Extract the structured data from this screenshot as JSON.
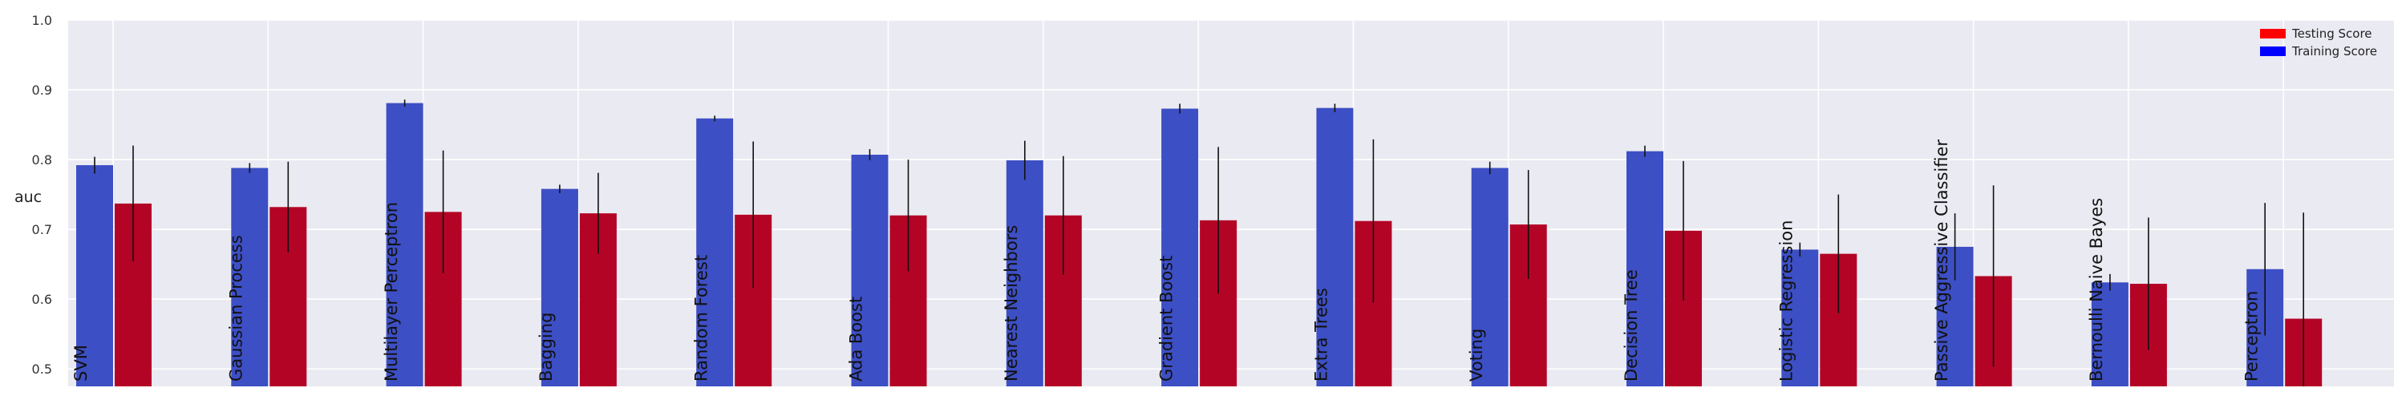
{
  "chart_data": {
    "type": "bar",
    "ylabel": "auc",
    "ylim": [
      0.475,
      1.0
    ],
    "yticks": [
      0.5,
      0.6,
      0.7,
      0.8,
      0.9,
      1.0
    ],
    "grid": true,
    "legend_position": "top-right",
    "categories": [
      "SVM",
      "Gaussian Process",
      "Multilayer Perceptron",
      "Bagging",
      "Random Forest",
      "Ada Boost",
      "Nearest Neighbors",
      "Gradient Boost",
      "Extra Trees",
      "Voting",
      "Decision Tree",
      "Logistic Regression",
      "Passive Aggressive Classifier",
      "Bernoulli Naive Bayes",
      "Perceptron"
    ],
    "series": [
      {
        "name": "Training Score",
        "color": "#3d4fc4",
        "values": [
          0.792,
          0.788,
          0.881,
          0.758,
          0.859,
          0.807,
          0.799,
          0.873,
          0.874,
          0.788,
          0.812,
          0.671,
          0.675,
          0.624,
          0.643
        ],
        "errors": [
          0.012,
          0.007,
          0.005,
          0.006,
          0.004,
          0.008,
          0.028,
          0.007,
          0.006,
          0.009,
          0.008,
          0.01,
          0.048,
          0.012,
          0.095
        ]
      },
      {
        "name": "Testing Score",
        "color": "#b40426",
        "values": [
          0.737,
          0.732,
          0.725,
          0.723,
          0.721,
          0.72,
          0.72,
          0.713,
          0.712,
          0.707,
          0.698,
          0.665,
          0.633,
          0.622,
          0.572
        ],
        "errors": [
          0.083,
          0.065,
          0.088,
          0.058,
          0.105,
          0.08,
          0.085,
          0.105,
          0.117,
          0.078,
          0.1,
          0.085,
          0.13,
          0.095,
          0.152
        ]
      }
    ],
    "legend": [
      "Testing Score",
      "Training Score"
    ]
  }
}
